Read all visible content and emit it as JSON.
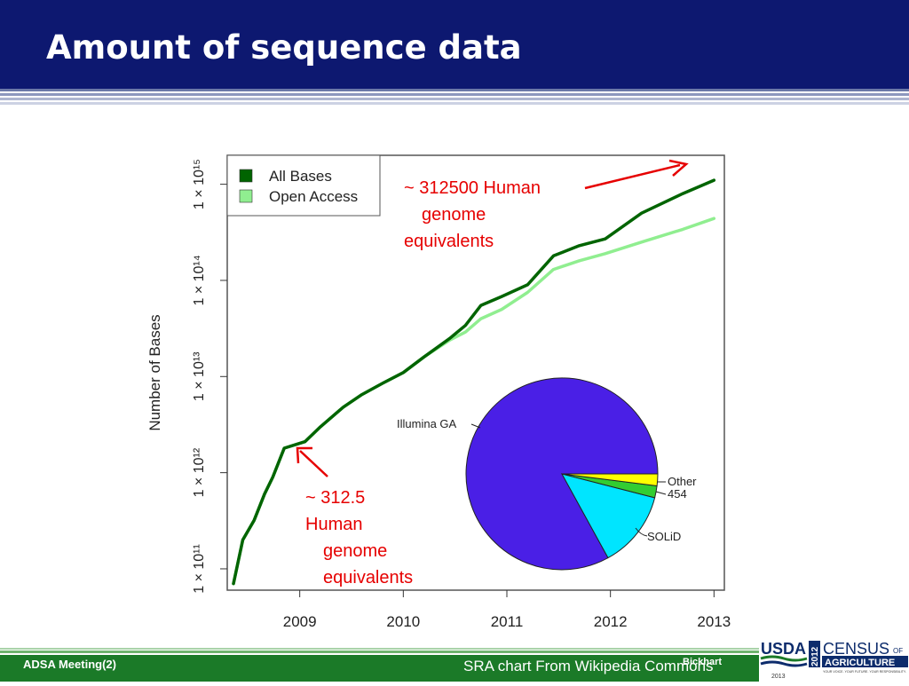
{
  "slide": {
    "title": "Amount of sequence data",
    "footer_left": "ADSA Meeting(2)",
    "footer_credit": "SRA chart From Wikipedia Commons",
    "footer_presenter": "Bickhart",
    "logo": {
      "usda": "USDA",
      "census_year": "2012",
      "census_line1": "CENSUS",
      "census_of": "OF",
      "census_line2": "AGRICULTURE",
      "census_tagline": "YOUR VOICE. YOUR FUTURE. YOUR RESPONSIBILITY.",
      "logo_year": "2013"
    }
  },
  "chart_data": [
    {
      "type": "line",
      "ylabel": "Number of Bases",
      "xlabel": "",
      "y_scale": "log10",
      "ylim": [
        60000000000,
        2000000000000000
      ],
      "xlim": [
        2008.3,
        2013.1
      ],
      "xticks": [
        "2009",
        "2010",
        "2011",
        "2012",
        "2013"
      ],
      "xtick_values": [
        2009,
        2010,
        2011,
        2012,
        2013
      ],
      "yticks": [
        "1 × 10¹¹",
        "1 × 10¹²",
        "1 × 10¹³",
        "1 × 10¹⁴",
        "1 × 10¹⁵"
      ],
      "ytick_values": [
        100000000000,
        1000000000000,
        10000000000000,
        100000000000000,
        1000000000000000
      ],
      "legend": {
        "position": "top-left",
        "entries": [
          "All Bases",
          "Open Access"
        ]
      },
      "series": [
        {
          "name": "All Bases",
          "color": "#006400",
          "x": [
            2008.36,
            2008.45,
            2008.56,
            2008.66,
            2008.74,
            2008.85,
            2009.05,
            2009.2,
            2009.42,
            2009.6,
            2009.8,
            2010.0,
            2010.2,
            2010.45,
            2010.6,
            2010.75,
            2010.95,
            2011.2,
            2011.45,
            2011.7,
            2011.95,
            2012.3,
            2012.7,
            2013.0
          ],
          "y": [
            70000000000,
            200000000000,
            320000000000,
            600000000000,
            900000000000,
            1800000000000,
            2100000000000,
            3000000000000,
            4800000000000,
            6500000000000,
            8500000000000,
            11000000000000,
            16000000000000,
            25000000000000,
            34000000000000,
            55000000000000,
            68000000000000,
            90000000000000,
            180000000000000,
            230000000000000,
            270000000000000,
            500000000000000,
            800000000000000,
            1100000000000000
          ]
        },
        {
          "name": "Open Access",
          "color": "#90ee90",
          "x": [
            2008.36,
            2008.45,
            2008.56,
            2008.66,
            2008.74,
            2008.85,
            2009.05,
            2009.2,
            2009.42,
            2009.6,
            2009.8,
            2010.0,
            2010.2,
            2010.45,
            2010.6,
            2010.75,
            2010.95,
            2011.2,
            2011.45,
            2011.7,
            2011.95,
            2012.3,
            2012.7,
            2013.0
          ],
          "y": [
            70000000000,
            200000000000,
            320000000000,
            600000000000,
            900000000000,
            1800000000000,
            2100000000000,
            3000000000000,
            4800000000000,
            6500000000000,
            8500000000000,
            11000000000000,
            16000000000000,
            24000000000000,
            29000000000000,
            40000000000000,
            50000000000000,
            75000000000000,
            130000000000000,
            160000000000000,
            190000000000000,
            250000000000000,
            340000000000000,
            440000000000000
          ]
        }
      ]
    },
    {
      "type": "pie",
      "labels": [
        "Illumina GA",
        "SOLiD",
        "454",
        "Other"
      ],
      "values": [
        83,
        13,
        2,
        2
      ],
      "colors": [
        "#4a1fe6",
        "#00e5ff",
        "#32cd32",
        "#ffff00"
      ]
    }
  ],
  "annotations": [
    {
      "text_lines": [
        "~ 312500 Human",
        "genome",
        "equivalents"
      ],
      "color": "#e60000"
    },
    {
      "text_lines": [
        "~ 312.5",
        "Human",
        "genome",
        "equivalents"
      ],
      "color": "#e60000"
    }
  ]
}
